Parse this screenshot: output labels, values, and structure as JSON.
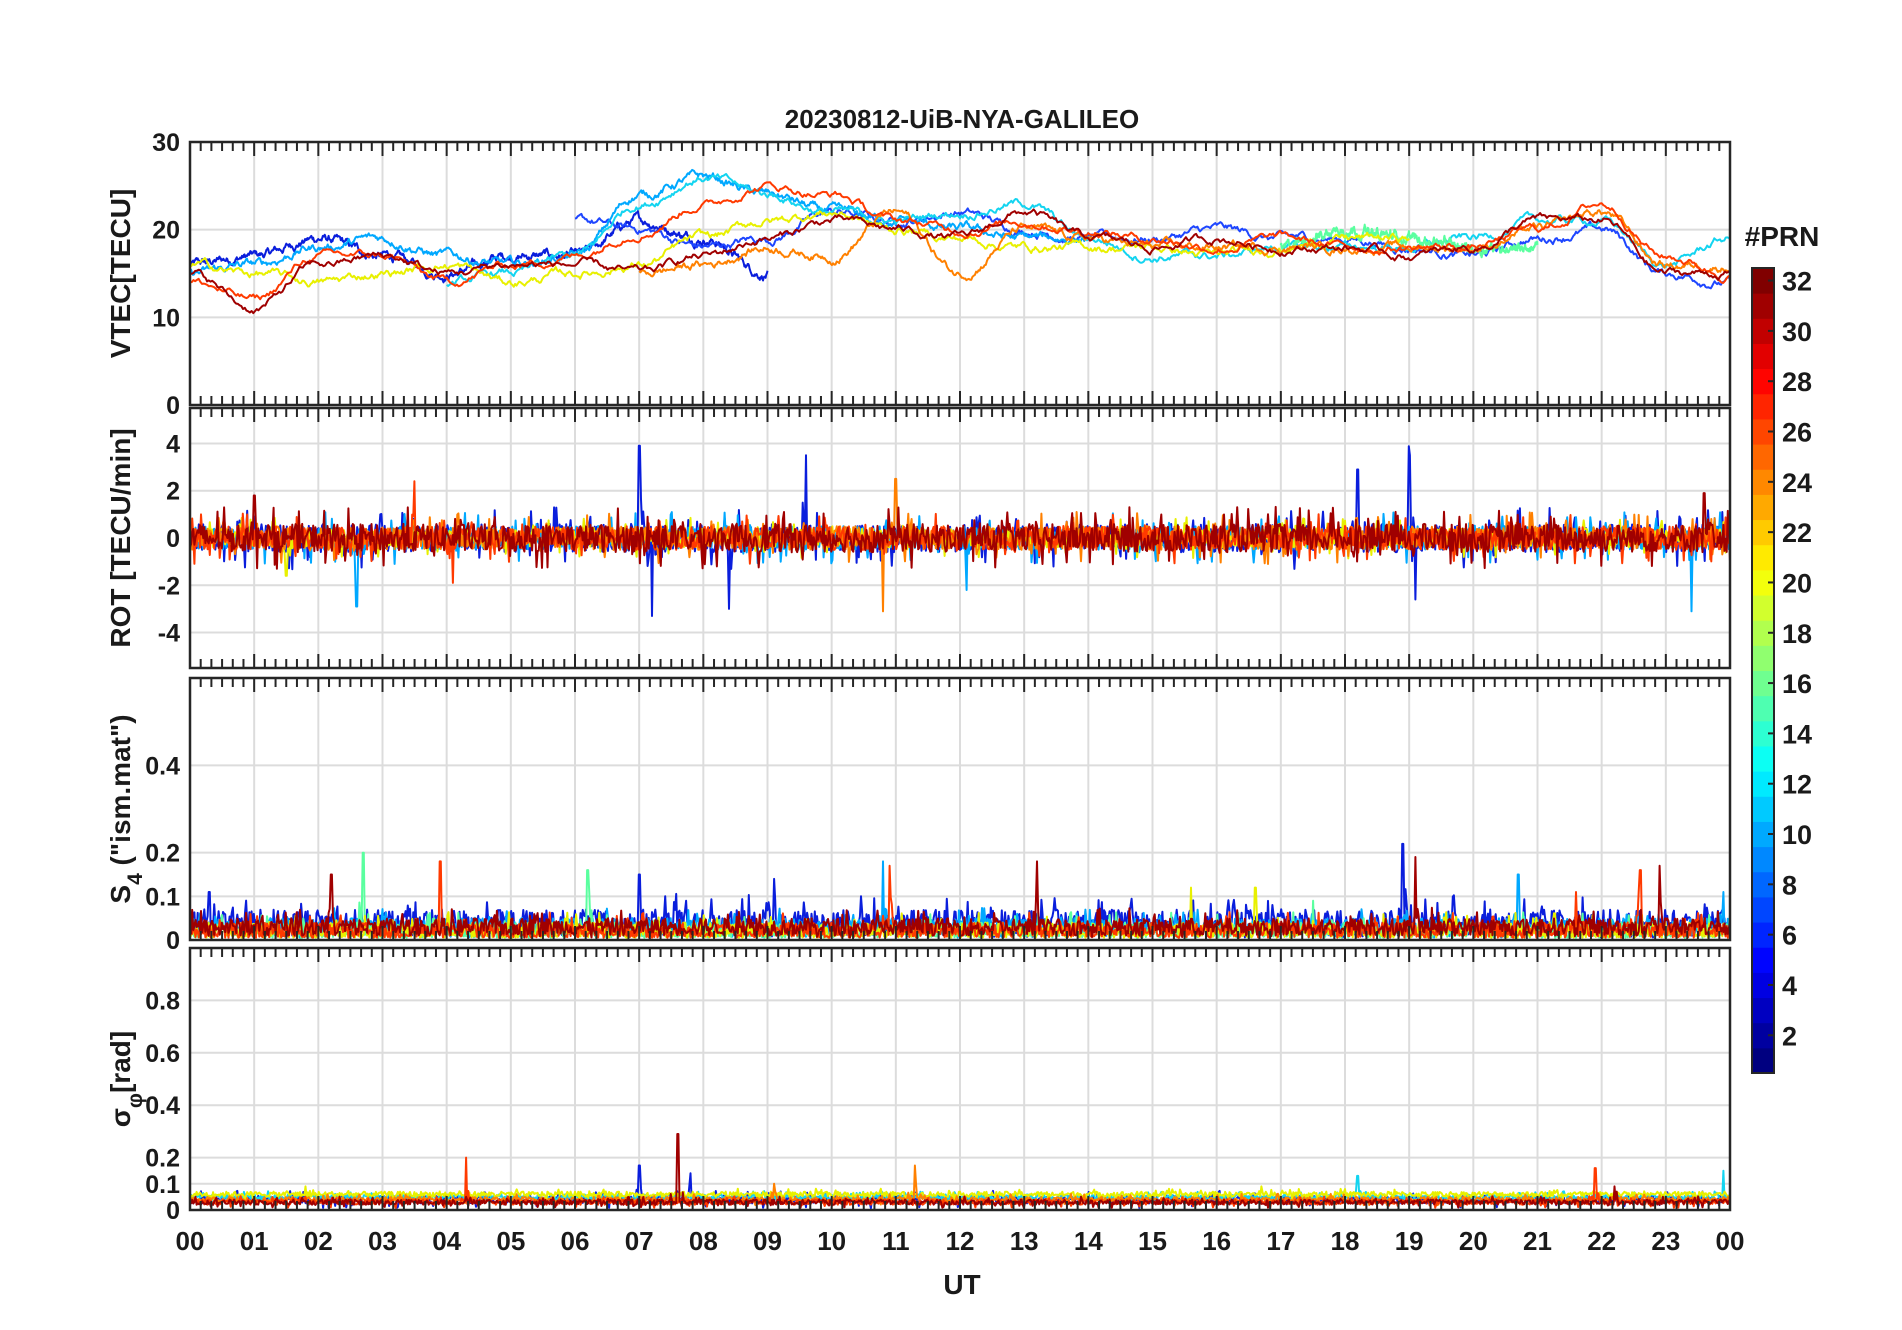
{
  "figure": {
    "title": "20230812-UiB-NYA-GALILEO",
    "colorbar": {
      "label": "#PRN",
      "range": [
        1,
        32
      ],
      "ticks": [
        "2",
        "4",
        "6",
        "8",
        "10",
        "12",
        "14",
        "16",
        "18",
        "20",
        "22",
        "24",
        "26",
        "28",
        "30",
        "32"
      ],
      "colormap": "jet"
    },
    "xaxis": {
      "label": "UT",
      "range_hours": [
        0,
        24
      ],
      "ticks": [
        "00",
        "01",
        "02",
        "03",
        "04",
        "05",
        "06",
        "07",
        "08",
        "09",
        "10",
        "11",
        "12",
        "13",
        "14",
        "15",
        "16",
        "17",
        "18",
        "19",
        "20",
        "21",
        "22",
        "23",
        "00"
      ]
    },
    "grid": true
  },
  "chart_data": [
    {
      "type": "line",
      "panel": "vtec",
      "ylabel": "VTEC[TECU]",
      "ylim": [
        0,
        30
      ],
      "yticks": [
        "0",
        "10",
        "20",
        "30"
      ],
      "series": [
        {
          "prn": 3,
          "color": "#0a1edc",
          "x": [
            0,
            1,
            2,
            3,
            4,
            5,
            6,
            7,
            8,
            9
          ],
          "y": [
            16,
            17,
            19,
            17,
            15,
            17,
            17,
            21,
            19,
            15
          ]
        },
        {
          "prn": 5,
          "color": "#1e46ff",
          "x": [
            6,
            7,
            8,
            9,
            10,
            11,
            12,
            13,
            14,
            15,
            16,
            17,
            18,
            19,
            20,
            21,
            22,
            23,
            24
          ],
          "y": [
            21,
            20,
            18,
            19,
            22,
            21,
            22,
            20,
            19,
            19,
            20,
            19,
            19,
            18,
            17,
            19,
            20,
            15,
            14
          ]
        },
        {
          "prn": 10,
          "color": "#00a8ff",
          "x": [
            0,
            1,
            2,
            3,
            4,
            5,
            6,
            7,
            8,
            9,
            10,
            11,
            12,
            13,
            14
          ],
          "y": [
            15,
            16,
            18,
            19,
            17,
            16,
            17,
            24,
            26,
            24,
            22,
            21,
            20,
            19,
            19
          ]
        },
        {
          "prn": 12,
          "color": "#13d4f0",
          "x": [
            4,
            5,
            6,
            7,
            8,
            9,
            10,
            11,
            12,
            13,
            14,
            15,
            16,
            17,
            18,
            19,
            20,
            21,
            22,
            23,
            24
          ],
          "y": [
            14,
            15,
            17,
            23,
            26,
            24,
            22,
            21,
            22,
            23,
            19,
            17,
            17,
            18,
            18,
            18,
            19,
            21,
            21,
            16,
            19
          ]
        },
        {
          "prn": 16,
          "color": "#5aff9f",
          "x": [
            17,
            18,
            19,
            20,
            21
          ],
          "y": [
            18,
            20,
            19,
            18,
            18
          ]
        },
        {
          "prn": 20,
          "color": "#e8f000",
          "x": [
            0,
            1,
            2,
            3,
            4,
            5,
            6,
            7,
            8,
            9,
            10,
            11,
            12,
            13,
            14,
            15,
            16,
            17,
            18,
            19
          ],
          "y": [
            16,
            15,
            14,
            15,
            16,
            14,
            15,
            16,
            19,
            21,
            22,
            20,
            19,
            18,
            18,
            18,
            17,
            18,
            19,
            19
          ]
        },
        {
          "prn": 24,
          "color": "#ff8000",
          "x": [
            7,
            8,
            9,
            10,
            11,
            12,
            13,
            14,
            15,
            16,
            17,
            18,
            19,
            20,
            21,
            22,
            23,
            24
          ],
          "y": [
            15,
            16,
            18,
            17,
            22,
            15,
            20,
            19,
            18,
            18,
            18,
            18,
            18,
            18,
            20,
            22,
            16,
            16
          ]
        },
        {
          "prn": 27,
          "color": "#ff3a00",
          "x": [
            0,
            1,
            2,
            3,
            4,
            5,
            6,
            7,
            8,
            9,
            10,
            11,
            12,
            13,
            14,
            15,
            16,
            17,
            18,
            19,
            20,
            21,
            22,
            23,
            24
          ],
          "y": [
            14,
            12,
            17,
            17,
            14,
            16,
            17,
            20,
            23,
            25,
            24,
            21,
            20,
            21,
            20,
            19,
            18,
            19,
            18,
            18,
            18,
            20,
            23,
            17,
            15
          ]
        },
        {
          "prn": 31,
          "color": "#a00000",
          "x": [
            0,
            1,
            2,
            3,
            4,
            5,
            6,
            7,
            8,
            9,
            10,
            11,
            12,
            13,
            14,
            15,
            16,
            17,
            18,
            19,
            20,
            21,
            22,
            23,
            24
          ],
          "y": [
            15,
            11,
            16,
            17,
            15,
            16,
            16,
            15,
            17,
            19,
            21,
            20,
            19,
            22,
            19,
            18,
            19,
            18,
            18,
            17,
            18,
            21,
            21,
            15,
            15
          ]
        }
      ]
    },
    {
      "type": "line",
      "panel": "rot",
      "ylabel": "ROT [TECU/min]",
      "ylim": [
        -5.5,
        5.5
      ],
      "yticks": [
        "-4",
        "-2",
        "0",
        "2",
        "4"
      ],
      "series": [
        {
          "prn": 3,
          "color": "#0a1edc",
          "baseline": 0,
          "noise": 0.6,
          "spikes": [
            [
              7.0,
              3.9
            ],
            [
              7.2,
              -3.3
            ],
            [
              8.4,
              -3.0
            ],
            [
              9.6,
              3.5
            ],
            [
              18.2,
              2.9
            ],
            [
              19.0,
              3.9
            ],
            [
              19.1,
              -2.6
            ]
          ]
        },
        {
          "prn": 10,
          "color": "#00a8ff",
          "baseline": 0,
          "noise": 0.5,
          "spikes": [
            [
              2.6,
              -2.9
            ],
            [
              12.1,
              -2.2
            ],
            [
              23.4,
              -3.1
            ]
          ]
        },
        {
          "prn": 20,
          "color": "#e8f000",
          "baseline": 0,
          "noise": 0.4,
          "spikes": [
            [
              1.5,
              -1.6
            ]
          ]
        },
        {
          "prn": 24,
          "color": "#ff8000",
          "baseline": 0,
          "noise": 0.5,
          "spikes": [
            [
              10.8,
              -3.1
            ],
            [
              11.0,
              2.5
            ]
          ]
        },
        {
          "prn": 27,
          "color": "#ff3a00",
          "baseline": 0,
          "noise": 0.5,
          "spikes": [
            [
              3.5,
              2.4
            ],
            [
              4.1,
              -1.9
            ]
          ]
        },
        {
          "prn": 31,
          "color": "#a00000",
          "baseline": 0,
          "noise": 0.6,
          "spikes": [
            [
              1.0,
              1.8
            ],
            [
              23.6,
              1.9
            ]
          ]
        }
      ]
    },
    {
      "type": "line",
      "panel": "s4",
      "ylabel": "S4 (\"ism.mat\")",
      "ylabel_main": "S",
      "ylabel_sub": "4",
      "ylabel_rest": " (\"ism.mat\")",
      "ylim": [
        0,
        0.6
      ],
      "yticks": [
        "0",
        "0.1",
        "0.2",
        "0.4"
      ],
      "series": [
        {
          "prn": 3,
          "color": "#0a1edc",
          "baseline": 0.04,
          "noise": 0.03,
          "spikes": [
            [
              0.3,
              0.11
            ],
            [
              7.0,
              0.15
            ],
            [
              9.1,
              0.14
            ],
            [
              18.9,
              0.22
            ]
          ]
        },
        {
          "prn": 10,
          "color": "#00a8ff",
          "baseline": 0.03,
          "noise": 0.02,
          "spikes": [
            [
              10.8,
              0.18
            ],
            [
              20.7,
              0.15
            ],
            [
              23.9,
              0.11
            ]
          ]
        },
        {
          "prn": 16,
          "color": "#5aff9f",
          "baseline": 0.02,
          "noise": 0.02,
          "spikes": [
            [
              2.7,
              0.2
            ],
            [
              6.2,
              0.16
            ],
            [
              17.5,
              0.09
            ]
          ]
        },
        {
          "prn": 20,
          "color": "#e8f000",
          "baseline": 0.02,
          "noise": 0.02,
          "spikes": [
            [
              15.6,
              0.12
            ],
            [
              16.6,
              0.12
            ]
          ]
        },
        {
          "prn": 27,
          "color": "#ff3a00",
          "baseline": 0.02,
          "noise": 0.02,
          "spikes": [
            [
              3.9,
              0.18
            ],
            [
              10.9,
              0.17
            ],
            [
              21.6,
              0.11
            ],
            [
              22.6,
              0.16
            ]
          ]
        },
        {
          "prn": 31,
          "color": "#a00000",
          "baseline": 0.03,
          "noise": 0.02,
          "spikes": [
            [
              2.2,
              0.15
            ],
            [
              13.2,
              0.18
            ],
            [
              19.1,
              0.19
            ],
            [
              22.9,
              0.17
            ]
          ]
        }
      ]
    },
    {
      "type": "line",
      "panel": "sigma_phi",
      "ylabel": "σφ[rad]",
      "ylabel_main": "σ",
      "ylabel_sub": "φ",
      "ylabel_rest": "[rad]",
      "ylim": [
        0,
        1.0
      ],
      "yticks": [
        "0",
        "0.1",
        "0.2",
        "0.4",
        "0.6",
        "0.8"
      ],
      "series": [
        {
          "prn": 3,
          "color": "#0a1edc",
          "baseline": 0.04,
          "noise": 0.015,
          "spikes": [
            [
              7.0,
              0.17
            ],
            [
              7.8,
              0.14
            ]
          ]
        },
        {
          "prn": 12,
          "color": "#13d4f0",
          "baseline": 0.05,
          "noise": 0.01,
          "spikes": [
            [
              18.2,
              0.13
            ],
            [
              23.9,
              0.15
            ]
          ]
        },
        {
          "prn": 20,
          "color": "#e8f000",
          "baseline": 0.06,
          "noise": 0.01,
          "spikes": [
            [
              1.8,
              0.09
            ],
            [
              16.7,
              0.09
            ]
          ]
        },
        {
          "prn": 24,
          "color": "#ff8000",
          "baseline": 0.04,
          "noise": 0.01,
          "spikes": [
            [
              9.1,
              0.1
            ],
            [
              11.3,
              0.17
            ]
          ]
        },
        {
          "prn": 27,
          "color": "#ff3a00",
          "baseline": 0.03,
          "noise": 0.01,
          "spikes": [
            [
              4.3,
              0.2
            ],
            [
              21.9,
              0.16
            ]
          ]
        },
        {
          "prn": 31,
          "color": "#a00000",
          "baseline": 0.03,
          "noise": 0.01,
          "spikes": [
            [
              7.6,
              0.29
            ],
            [
              22.2,
              0.09
            ]
          ]
        }
      ]
    }
  ]
}
